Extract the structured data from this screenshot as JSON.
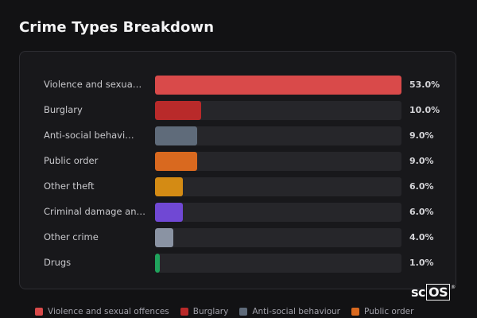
{
  "page": {
    "title": "Crime Types Breakdown"
  },
  "logo": {
    "text_a": "sc",
    "text_b": "OS",
    "mark": "®"
  },
  "chart_data": {
    "type": "bar",
    "orientation": "horizontal",
    "title": "Crime Types Breakdown",
    "categories": [
      "Violence and sexua…",
      "Burglary",
      "Anti-social behavi…",
      "Public order",
      "Other theft",
      "Criminal damage an…",
      "Other crime",
      "Drugs"
    ],
    "values": [
      53.0,
      10.0,
      9.0,
      9.0,
      6.0,
      6.0,
      4.0,
      1.0
    ],
    "value_labels": [
      "53.0%",
      "10.0%",
      "9.0%",
      "9.0%",
      "6.0%",
      "6.0%",
      "4.0%",
      "1.0%"
    ],
    "colors": [
      "#d94a4a",
      "#b92a2a",
      "#5f6b7a",
      "#d9691f",
      "#d48b14",
      "#7048d4",
      "#8a93a3",
      "#1fa35c"
    ],
    "xlim": [
      0,
      53
    ],
    "grid": false,
    "legend_placement": "bottom"
  },
  "legend": [
    {
      "label": "Violence and sexual offences",
      "color": "#d94a4a"
    },
    {
      "label": "Burglary",
      "color": "#b92a2a"
    },
    {
      "label": "Anti-social behaviour",
      "color": "#5f6b7a"
    },
    {
      "label": "Public order",
      "color": "#d9691f"
    }
  ]
}
